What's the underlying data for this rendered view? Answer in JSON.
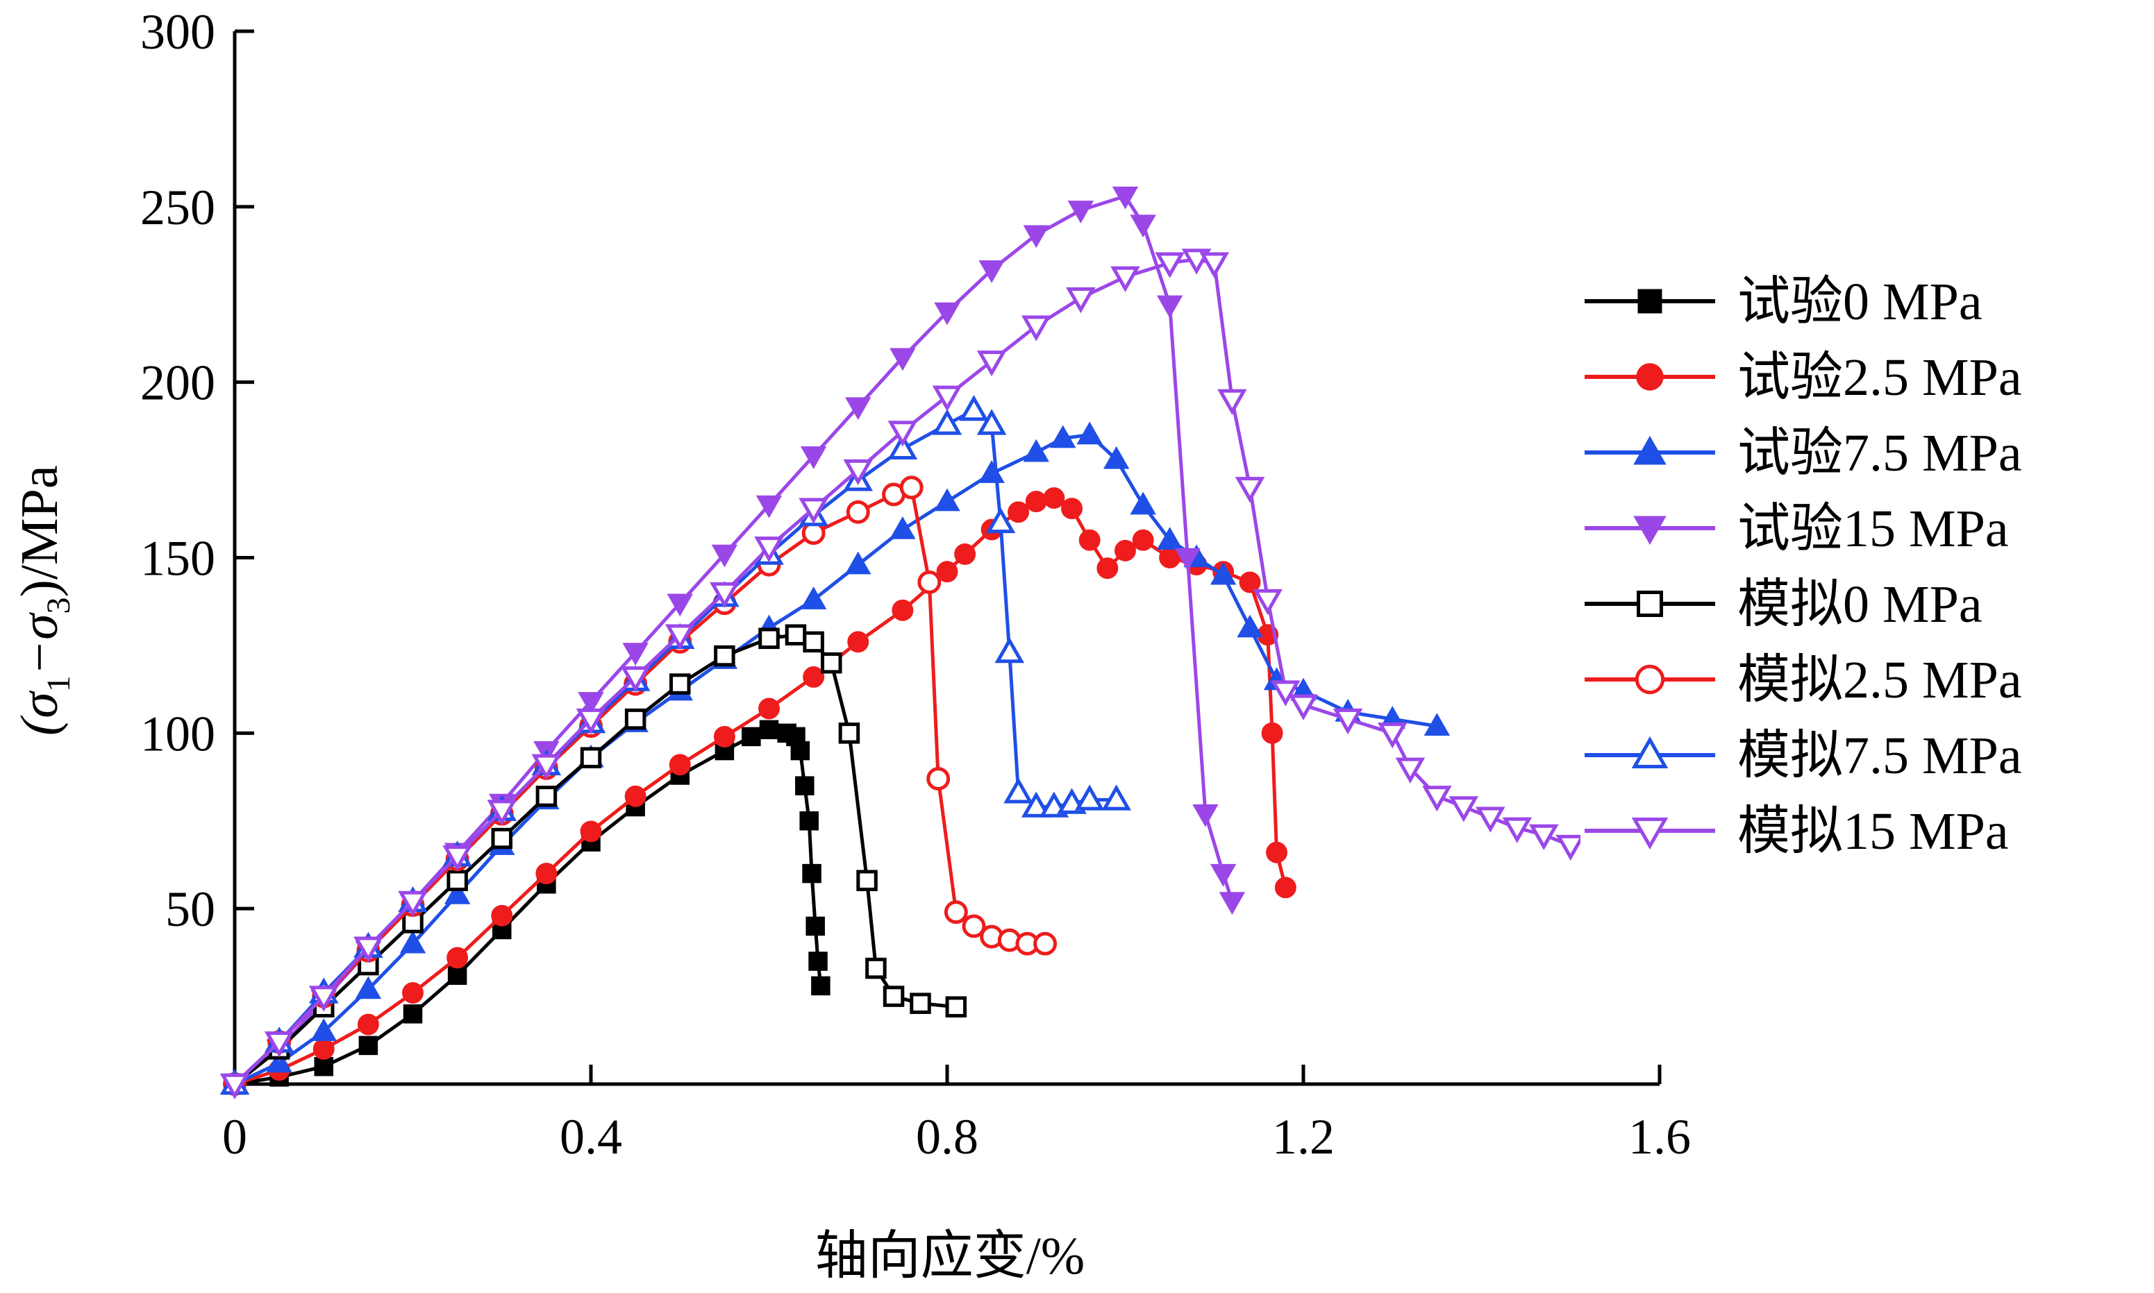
{
  "chart_data": {
    "type": "line",
    "title": "",
    "xlabel": "轴向应变/%",
    "ylabel_parts": [
      "(σ",
      "1",
      "−σ",
      "3",
      ")/MPa"
    ],
    "xlim": [
      0,
      1.6
    ],
    "ylim": [
      0,
      300
    ],
    "xticks": [
      0,
      0.4,
      0.8,
      1.2,
      1.6
    ],
    "xtick_labels": [
      "0",
      "0.4",
      "0.8",
      "1.2",
      "1.6"
    ],
    "yticks": [
      50,
      100,
      150,
      200,
      250,
      300
    ],
    "ytick_labels": [
      "50",
      "100",
      "150",
      "200",
      "250",
      "300"
    ],
    "grid": false,
    "legend_position": "right",
    "series": [
      {
        "name": "试验0 MPa",
        "color": "#000000",
        "marker": "square",
        "filled": true,
        "points": [
          [
            0.0,
            0
          ],
          [
            0.05,
            2
          ],
          [
            0.1,
            5
          ],
          [
            0.15,
            11
          ],
          [
            0.2,
            20
          ],
          [
            0.25,
            31
          ],
          [
            0.3,
            44
          ],
          [
            0.35,
            57
          ],
          [
            0.4,
            69
          ],
          [
            0.45,
            79
          ],
          [
            0.5,
            88
          ],
          [
            0.55,
            95
          ],
          [
            0.58,
            99
          ],
          [
            0.6,
            101
          ],
          [
            0.62,
            100
          ],
          [
            0.63,
            99
          ],
          [
            0.635,
            95
          ],
          [
            0.64,
            85
          ],
          [
            0.645,
            75
          ],
          [
            0.648,
            60
          ],
          [
            0.652,
            45
          ],
          [
            0.655,
            35
          ],
          [
            0.658,
            28
          ]
        ]
      },
      {
        "name": "试验2.5 MPa",
        "color": "#ee1c1c",
        "marker": "circle",
        "filled": true,
        "points": [
          [
            0.0,
            0
          ],
          [
            0.05,
            4
          ],
          [
            0.1,
            10
          ],
          [
            0.15,
            17
          ],
          [
            0.2,
            26
          ],
          [
            0.25,
            36
          ],
          [
            0.3,
            48
          ],
          [
            0.35,
            60
          ],
          [
            0.4,
            72
          ],
          [
            0.45,
            82
          ],
          [
            0.5,
            91
          ],
          [
            0.55,
            99
          ],
          [
            0.6,
            107
          ],
          [
            0.65,
            116
          ],
          [
            0.7,
            126
          ],
          [
            0.75,
            135
          ],
          [
            0.8,
            146
          ],
          [
            0.82,
            151
          ],
          [
            0.85,
            158
          ],
          [
            0.88,
            163
          ],
          [
            0.9,
            166
          ],
          [
            0.92,
            167
          ],
          [
            0.94,
            164
          ],
          [
            0.96,
            155
          ],
          [
            0.98,
            147
          ],
          [
            1.0,
            152
          ],
          [
            1.02,
            155
          ],
          [
            1.05,
            150
          ],
          [
            1.08,
            148
          ],
          [
            1.11,
            146
          ],
          [
            1.14,
            143
          ],
          [
            1.16,
            128
          ],
          [
            1.165,
            100
          ],
          [
            1.17,
            66
          ],
          [
            1.18,
            56
          ]
        ]
      },
      {
        "name": "试验7.5 MPa",
        "color": "#1f4fe6",
        "marker": "triangle-up",
        "filled": true,
        "points": [
          [
            0.0,
            0
          ],
          [
            0.05,
            6
          ],
          [
            0.1,
            15
          ],
          [
            0.15,
            27
          ],
          [
            0.2,
            40
          ],
          [
            0.25,
            54
          ],
          [
            0.3,
            68
          ],
          [
            0.35,
            81
          ],
          [
            0.4,
            93
          ],
          [
            0.45,
            103
          ],
          [
            0.5,
            112
          ],
          [
            0.55,
            121
          ],
          [
            0.6,
            130
          ],
          [
            0.65,
            138
          ],
          [
            0.7,
            148
          ],
          [
            0.75,
            158
          ],
          [
            0.8,
            166
          ],
          [
            0.85,
            174
          ],
          [
            0.9,
            180
          ],
          [
            0.93,
            184
          ],
          [
            0.96,
            185
          ],
          [
            0.99,
            178
          ],
          [
            1.02,
            165
          ],
          [
            1.05,
            155
          ],
          [
            1.08,
            150
          ],
          [
            1.11,
            145
          ],
          [
            1.14,
            130
          ],
          [
            1.17,
            115
          ],
          [
            1.2,
            112
          ],
          [
            1.25,
            106
          ],
          [
            1.3,
            104
          ],
          [
            1.35,
            102
          ]
        ]
      },
      {
        "name": "试验15 MPa",
        "color": "#9b47e8",
        "marker": "triangle-down",
        "filled": true,
        "points": [
          [
            0.0,
            0
          ],
          [
            0.05,
            10
          ],
          [
            0.1,
            24
          ],
          [
            0.15,
            38
          ],
          [
            0.2,
            52
          ],
          [
            0.25,
            66
          ],
          [
            0.3,
            80
          ],
          [
            0.35,
            95
          ],
          [
            0.4,
            109
          ],
          [
            0.45,
            123
          ],
          [
            0.5,
            137
          ],
          [
            0.55,
            151
          ],
          [
            0.6,
            165
          ],
          [
            0.65,
            179
          ],
          [
            0.7,
            193
          ],
          [
            0.75,
            207
          ],
          [
            0.8,
            220
          ],
          [
            0.85,
            232
          ],
          [
            0.9,
            242
          ],
          [
            0.95,
            249
          ],
          [
            1.0,
            253
          ],
          [
            1.02,
            245
          ],
          [
            1.05,
            222
          ],
          [
            1.07,
            150
          ],
          [
            1.09,
            77
          ],
          [
            1.11,
            60
          ],
          [
            1.12,
            52
          ]
        ]
      },
      {
        "name": "模拟0 MPa",
        "color": "#000000",
        "marker": "square",
        "filled": false,
        "points": [
          [
            0.0,
            0
          ],
          [
            0.05,
            10
          ],
          [
            0.1,
            22
          ],
          [
            0.15,
            34
          ],
          [
            0.2,
            46
          ],
          [
            0.25,
            58
          ],
          [
            0.3,
            70
          ],
          [
            0.35,
            82
          ],
          [
            0.4,
            93
          ],
          [
            0.45,
            104
          ],
          [
            0.5,
            114
          ],
          [
            0.55,
            122
          ],
          [
            0.6,
            127
          ],
          [
            0.63,
            128
          ],
          [
            0.65,
            126
          ],
          [
            0.67,
            120
          ],
          [
            0.69,
            100
          ],
          [
            0.71,
            58
          ],
          [
            0.72,
            33
          ],
          [
            0.74,
            25
          ],
          [
            0.77,
            23
          ],
          [
            0.81,
            22
          ]
        ]
      },
      {
        "name": "模拟2.5 MPa",
        "color": "#ee1c1c",
        "marker": "circle",
        "filled": false,
        "points": [
          [
            0.0,
            0
          ],
          [
            0.05,
            12
          ],
          [
            0.1,
            25
          ],
          [
            0.15,
            38
          ],
          [
            0.2,
            51
          ],
          [
            0.25,
            64
          ],
          [
            0.3,
            77
          ],
          [
            0.35,
            90
          ],
          [
            0.4,
            102
          ],
          [
            0.45,
            114
          ],
          [
            0.5,
            126
          ],
          [
            0.55,
            137
          ],
          [
            0.6,
            148
          ],
          [
            0.65,
            157
          ],
          [
            0.7,
            163
          ],
          [
            0.74,
            168
          ],
          [
            0.76,
            170
          ],
          [
            0.78,
            143
          ],
          [
            0.79,
            87
          ],
          [
            0.81,
            49
          ],
          [
            0.83,
            45
          ],
          [
            0.85,
            42
          ],
          [
            0.87,
            41
          ],
          [
            0.89,
            40
          ],
          [
            0.91,
            40
          ]
        ]
      },
      {
        "name": "模拟7.5 MPa",
        "color": "#1f4fe6",
        "marker": "triangle-up",
        "filled": false,
        "points": [
          [
            0.0,
            0
          ],
          [
            0.05,
            12
          ],
          [
            0.1,
            26
          ],
          [
            0.15,
            39
          ],
          [
            0.2,
            52
          ],
          [
            0.25,
            65
          ],
          [
            0.3,
            78
          ],
          [
            0.35,
            91
          ],
          [
            0.4,
            103
          ],
          [
            0.45,
            115
          ],
          [
            0.5,
            127
          ],
          [
            0.55,
            139
          ],
          [
            0.6,
            151
          ],
          [
            0.65,
            162
          ],
          [
            0.7,
            172
          ],
          [
            0.75,
            181
          ],
          [
            0.8,
            188
          ],
          [
            0.83,
            192
          ],
          [
            0.85,
            188
          ],
          [
            0.86,
            160
          ],
          [
            0.87,
            123
          ],
          [
            0.88,
            83
          ],
          [
            0.9,
            79
          ],
          [
            0.92,
            79
          ],
          [
            0.94,
            80
          ],
          [
            0.96,
            81
          ],
          [
            0.99,
            81
          ]
        ]
      },
      {
        "name": "模拟15 MPa",
        "color": "#9b47e8",
        "marker": "triangle-down",
        "filled": false,
        "points": [
          [
            0.0,
            0
          ],
          [
            0.05,
            12
          ],
          [
            0.1,
            25
          ],
          [
            0.15,
            39
          ],
          [
            0.2,
            52
          ],
          [
            0.25,
            65
          ],
          [
            0.3,
            78
          ],
          [
            0.35,
            91
          ],
          [
            0.4,
            104
          ],
          [
            0.45,
            116
          ],
          [
            0.5,
            128
          ],
          [
            0.55,
            140
          ],
          [
            0.6,
            153
          ],
          [
            0.65,
            164
          ],
          [
            0.7,
            175
          ],
          [
            0.75,
            186
          ],
          [
            0.8,
            196
          ],
          [
            0.85,
            206
          ],
          [
            0.9,
            216
          ],
          [
            0.95,
            224
          ],
          [
            1.0,
            230
          ],
          [
            1.05,
            234
          ],
          [
            1.08,
            235
          ],
          [
            1.1,
            234
          ],
          [
            1.12,
            195
          ],
          [
            1.14,
            170
          ],
          [
            1.16,
            138
          ],
          [
            1.18,
            112
          ],
          [
            1.2,
            108
          ],
          [
            1.25,
            104
          ],
          [
            1.3,
            100
          ],
          [
            1.32,
            90
          ],
          [
            1.35,
            82
          ],
          [
            1.38,
            79
          ],
          [
            1.41,
            76
          ],
          [
            1.44,
            73
          ],
          [
            1.47,
            71
          ],
          [
            1.5,
            68
          ]
        ]
      }
    ]
  }
}
